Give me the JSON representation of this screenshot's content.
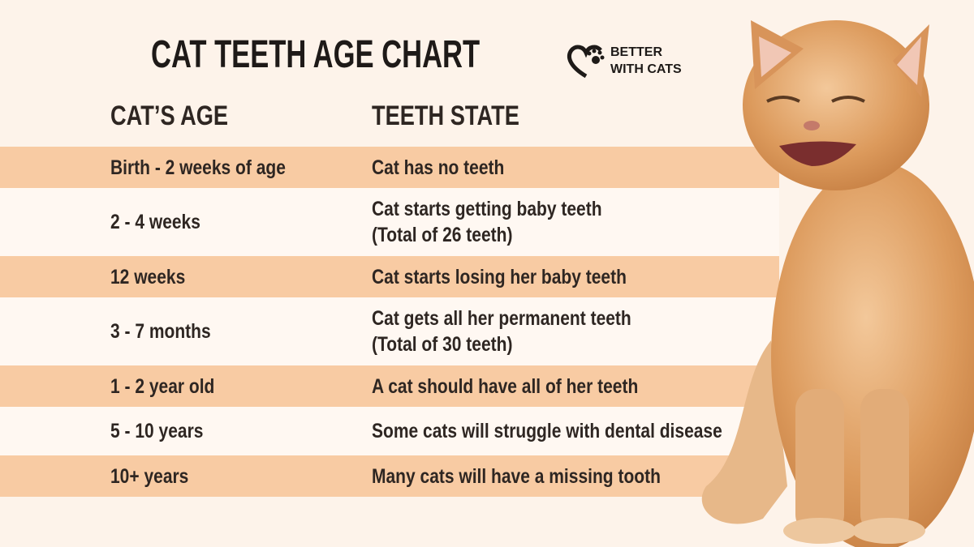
{
  "header": {
    "title": "CAT TEETH AGE CHART",
    "logo": [
      "BETTER",
      "WITH CATS"
    ]
  },
  "table": {
    "columns": [
      "CAT’S AGE",
      "TEETH STATE"
    ],
    "rows": [
      {
        "age": "Birth - 2 weeks of age",
        "teeth": [
          "Cat has no teeth"
        ]
      },
      {
        "age": "2 - 4 weeks",
        "teeth": [
          "Cat starts getting baby teeth",
          "(Total of 26 teeth)"
        ]
      },
      {
        "age": "12 weeks",
        "teeth": [
          "Cat starts losing her baby teeth"
        ]
      },
      {
        "age": "3 - 7 months",
        "teeth": [
          "Cat gets all her permanent teeth",
          "(Total of 30 teeth)"
        ]
      },
      {
        "age": "1 - 2 year old",
        "teeth": [
          "A cat should have all of her teeth"
        ]
      },
      {
        "age": "5 - 10 years",
        "teeth": [
          "Some cats will struggle with dental disease"
        ]
      },
      {
        "age": "10+ years",
        "teeth": [
          "Many cats will have a missing tooth"
        ]
      }
    ]
  }
}
